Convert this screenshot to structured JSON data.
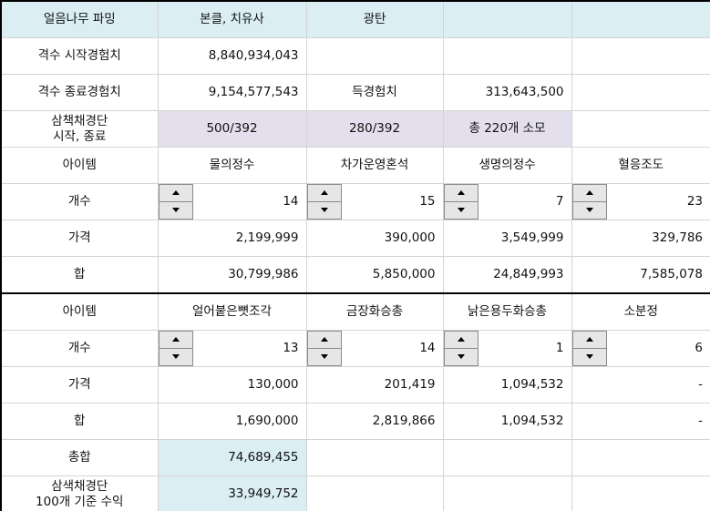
{
  "table": {
    "rows": [
      [
        "얼음나무 파밍",
        "본클, 치유사",
        "광탄",
        null,
        null
      ],
      [
        "격수 시작경험치",
        "8,840,934,043",
        null,
        null,
        null
      ],
      [
        "격수 종료경험치",
        "9,154,577,543",
        "득경험치",
        "313,643,500",
        null
      ],
      [
        "삼책채경단\n시작, 종료",
        "500/392",
        "280/392",
        "총 220개 소모",
        null
      ],
      [
        "아이템",
        "물의정수",
        "차가운영혼석",
        "생명의정수",
        "혈응조도"
      ],
      [
        "개수",
        "14",
        "15",
        "7",
        "23"
      ],
      [
        "가격",
        "2,199,999",
        "390,000",
        "3,549,999",
        "329,786"
      ],
      [
        "합",
        "30,799,986",
        "5,850,000",
        "24,849,993",
        "7,585,078"
      ],
      [
        "아이템",
        "얼어붙은뼛조각",
        "금장화승총",
        "낡은용두화승총",
        "소분정"
      ],
      [
        "개수",
        "13",
        "14",
        "1",
        "6"
      ],
      [
        "가격",
        "130,000",
        "201,419",
        "1,094,532",
        "-"
      ],
      [
        "합",
        "1,690,000",
        "2,819,866",
        "1,094,532",
        "-"
      ],
      [
        "총합",
        "74,689,455",
        null,
        null,
        null
      ],
      [
        "삼색채경단\n100개 기준 수익",
        "33,949,752",
        null,
        null,
        null
      ]
    ]
  }
}
